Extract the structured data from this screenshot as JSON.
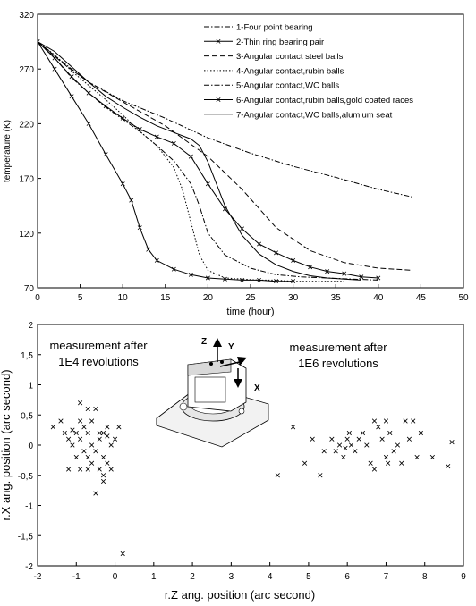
{
  "chart_data": [
    {
      "type": "line",
      "xlabel": "time (hour)",
      "ylabel": "temperature (K)",
      "xlim": [
        0,
        50
      ],
      "ylim": [
        70,
        320
      ],
      "xticks": [
        "0",
        "5",
        "10",
        "15",
        "20",
        "25",
        "30",
        "35",
        "40",
        "45",
        "50"
      ],
      "yticks": [
        "320",
        "270",
        "220",
        "170",
        "120",
        "70"
      ],
      "ytick_values": [
        320,
        270,
        220,
        170,
        120,
        70
      ],
      "xtick_values": [
        0,
        5,
        10,
        15,
        20,
        25,
        30,
        35,
        40,
        45,
        50
      ],
      "grid": false,
      "legend_position": "top-right",
      "series": [
        {
          "name": "1-Four point bearing",
          "style": "dashdot",
          "marker": "none",
          "x": [
            0,
            3,
            6,
            10,
            15,
            20,
            25,
            30,
            35,
            40,
            44
          ],
          "y": [
            295,
            276,
            258,
            241,
            225,
            207,
            193,
            181,
            171,
            160,
            153
          ]
        },
        {
          "name": "2-Thin ring bearing pair",
          "style": "solid",
          "marker": "x",
          "x": [
            0,
            2,
            4,
            6,
            8,
            10,
            12,
            14,
            16,
            18,
            20,
            22,
            24,
            26,
            28,
            30,
            32,
            34,
            36,
            38,
            40
          ],
          "y": [
            295,
            280,
            263,
            248,
            236,
            225,
            215,
            208,
            202,
            190,
            165,
            142,
            124,
            110,
            102,
            95,
            89,
            85,
            83,
            80,
            79
          ]
        },
        {
          "name": "3-Angular contact steel balls",
          "style": "dashed",
          "marker": "none",
          "x": [
            0,
            3,
            6,
            10,
            15,
            20,
            24,
            28,
            32,
            36,
            40,
            44
          ],
          "y": [
            295,
            275,
            258,
            240,
            218,
            190,
            160,
            125,
            104,
            93,
            88,
            86
          ]
        },
        {
          "name": "4-Angular contact,rubin balls",
          "style": "dotted",
          "marker": "none",
          "x": [
            0,
            2,
            4,
            6,
            8,
            10,
            12,
            14,
            16,
            17,
            18,
            19,
            20,
            22,
            24,
            26,
            28,
            30,
            33,
            36
          ],
          "y": [
            295,
            283,
            268,
            255,
            242,
            228,
            213,
            200,
            180,
            160,
            130,
            100,
            86,
            79,
            78,
            77,
            77,
            76,
            76,
            76
          ]
        },
        {
          "name": "5-Angular contact,WC balls",
          "style": "dashdot",
          "marker": "none",
          "x": [
            0,
            2,
            4,
            6,
            8,
            10,
            12,
            14,
            16,
            18,
            19,
            20,
            22,
            25,
            28,
            31,
            34,
            37,
            40
          ],
          "y": [
            295,
            280,
            262,
            248,
            235,
            224,
            213,
            200,
            186,
            165,
            145,
            120,
            100,
            88,
            82,
            80,
            79,
            78,
            77
          ]
        },
        {
          "name": "6-Angular contact,rubin balls,gold coated races",
          "style": "solid",
          "marker": "x",
          "x": [
            0,
            2,
            4,
            6,
            8,
            10,
            11,
            12,
            13,
            14,
            16,
            18,
            20,
            22,
            24,
            26,
            28,
            30
          ],
          "y": [
            295,
            270,
            245,
            220,
            192,
            165,
            150,
            125,
            105,
            95,
            87,
            82,
            79,
            78,
            77,
            77,
            76,
            76
          ]
        },
        {
          "name": "7-Angular contact,WC balls,alumium seat",
          "style": "solid",
          "marker": "none",
          "x": [
            0,
            2,
            4,
            6,
            8,
            10,
            12,
            14,
            16,
            18,
            19,
            20,
            21,
            22,
            24,
            26,
            28,
            30,
            32,
            34,
            36,
            38
          ],
          "y": [
            295,
            286,
            272,
            258,
            245,
            235,
            226,
            218,
            212,
            206,
            200,
            185,
            165,
            145,
            118,
            101,
            91,
            85,
            81,
            79,
            78,
            77
          ]
        }
      ]
    },
    {
      "type": "scatter",
      "xlabel": "r.Z  ang. position (arc second)",
      "ylabel": "r.X  ang. position (arc second)",
      "xlim": [
        -2,
        9
      ],
      "ylim": [
        -2,
        2
      ],
      "xticks": [
        "-2",
        "-1",
        "0",
        "1",
        "2",
        "3",
        "4",
        "5",
        "6",
        "7",
        "8",
        "9"
      ],
      "yticks": [
        "2",
        "1,5",
        "1",
        "0,5",
        "0",
        "-0,5",
        "-1",
        "-1,5",
        "-2"
      ],
      "ytick_values": [
        2,
        1.5,
        1,
        0.5,
        0,
        -0.5,
        -1,
        -1.5,
        -2
      ],
      "xtick_values": [
        -2,
        -1,
        0,
        1,
        2,
        3,
        4,
        5,
        6,
        7,
        8,
        9
      ],
      "marker": "x",
      "grid": false,
      "annotations": [
        {
          "text": [
            "measurement after",
            "1E4 revolutions"
          ]
        },
        {
          "text": [
            "measurement after",
            "1E6 revolutions"
          ]
        }
      ],
      "inset_axis_labels": [
        "Z",
        "Y",
        "X"
      ],
      "series": [
        {
          "name": "1E4",
          "points": [
            [
              -1.6,
              0.3
            ],
            [
              -1.4,
              0.4
            ],
            [
              -1.3,
              0.2
            ],
            [
              -1.2,
              0.1
            ],
            [
              -1.1,
              0
            ],
            [
              -1.0,
              0.2
            ],
            [
              -0.9,
              0.1
            ],
            [
              -1.0,
              -0.2
            ],
            [
              -0.8,
              0.3
            ],
            [
              -0.7,
              0.2
            ],
            [
              -0.6,
              0
            ],
            [
              -0.5,
              -0.1
            ],
            [
              -0.4,
              0.1
            ],
            [
              -0.3,
              0.2
            ],
            [
              -0.2,
              0.3
            ],
            [
              -0.1,
              0
            ],
            [
              0,
              0.1
            ],
            [
              -0.2,
              -0.3
            ],
            [
              -0.3,
              -0.5
            ],
            [
              -0.4,
              -0.4
            ],
            [
              -0.5,
              -0.8
            ],
            [
              -0.6,
              -0.3
            ],
            [
              -0.7,
              -0.2
            ],
            [
              -0.8,
              -0.1
            ],
            [
              -0.9,
              0.4
            ],
            [
              -0.7,
              0.6
            ],
            [
              -0.9,
              0.7
            ],
            [
              -0.5,
              0.6
            ],
            [
              -0.6,
              0.4
            ],
            [
              -1.2,
              -0.4
            ],
            [
              -0.9,
              -0.4
            ],
            [
              -0.7,
              -0.4
            ],
            [
              -0.3,
              -0.6
            ],
            [
              -0.1,
              -0.4
            ],
            [
              0.1,
              0.3
            ],
            [
              0.2,
              -1.8
            ],
            [
              -0.4,
              0.2
            ],
            [
              -0.3,
              -0.2
            ],
            [
              -1.1,
              0.25
            ],
            [
              -0.2,
              0.15
            ]
          ]
        },
        {
          "name": "1E6",
          "points": [
            [
              4.2,
              -0.5
            ],
            [
              4.6,
              0.3
            ],
            [
              4.9,
              -0.3
            ],
            [
              5.1,
              0.1
            ],
            [
              5.3,
              -0.5
            ],
            [
              5.4,
              -0.1
            ],
            [
              5.6,
              0.1
            ],
            [
              5.8,
              0
            ],
            [
              5.9,
              -0.2
            ],
            [
              6.0,
              0.1
            ],
            [
              6.1,
              0
            ],
            [
              6.2,
              -0.1
            ],
            [
              6.3,
              0.1
            ],
            [
              6.4,
              0.2
            ],
            [
              6.5,
              0
            ],
            [
              6.6,
              -0.3
            ],
            [
              6.7,
              0.4
            ],
            [
              6.8,
              0.3
            ],
            [
              6.9,
              0.1
            ],
            [
              7.0,
              -0.2
            ],
            [
              7.0,
              0.4
            ],
            [
              7.1,
              0.2
            ],
            [
              7.2,
              -0.1
            ],
            [
              7.3,
              0
            ],
            [
              7.4,
              -0.3
            ],
            [
              7.5,
              0.4
            ],
            [
              7.6,
              0.1
            ],
            [
              7.7,
              0.4
            ],
            [
              7.8,
              -0.2
            ],
            [
              7.9,
              0.2
            ],
            [
              8.2,
              -0.2
            ],
            [
              8.6,
              -0.35
            ],
            [
              8.7,
              0.05
            ],
            [
              6.7,
              -0.4
            ],
            [
              5.7,
              -0.1
            ],
            [
              6.05,
              0.2
            ],
            [
              7.05,
              -0.3
            ],
            [
              5.95,
              -0.05
            ]
          ]
        }
      ]
    }
  ]
}
